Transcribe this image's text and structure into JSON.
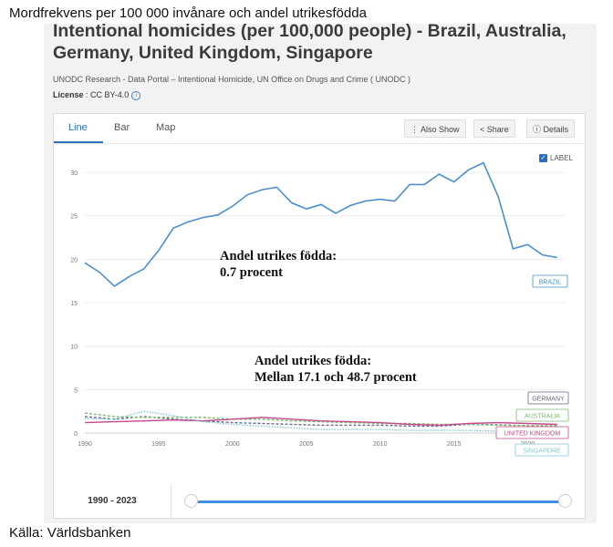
{
  "captions": {
    "top": "Mordfrekvens per 100 000 invånare och andel utrikesfödda",
    "bottom": "Källa: Världsbanken"
  },
  "header": {
    "title": "Intentional homicides (per 100,000 people) - Brazil, Australia, Germany, United Kingdom, Singapore",
    "source": "UNODC Research - Data Portal – Intentional Homicide, UN Office on Drugs and Crime ( UNODC )",
    "license_key": "License",
    "license_value": " : CC BY-4.0"
  },
  "tabs": [
    {
      "label": "Line"
    },
    {
      "label": "Bar"
    },
    {
      "label": "Map"
    }
  ],
  "toolbar": {
    "also_show": "Also Show",
    "share": "Share",
    "details": "Details"
  },
  "label_toggle": "LABEL",
  "annotations": {
    "a1_line1": "Andel utrikes födda:",
    "a1_line2": "0.7 procent",
    "a2_line1": "Andel utrikes födda:",
    "a2_line2": "Mellan 17.1 och 48.7 procent"
  },
  "range": {
    "label": "1990 - 2023"
  },
  "colors": {
    "BRAZIL": "#4a8fc9",
    "GERMANY": "#6a6a88",
    "AUSTRALIA": "#7fb86a",
    "UNITED KINGDOM": "#c2498a",
    "SINGAPORE": "#7ec8d0"
  },
  "chart_data": {
    "type": "line",
    "ylim": [
      0,
      32
    ],
    "y_ticks": [
      0,
      5,
      10,
      15,
      20,
      25,
      30
    ],
    "x_ticks": [
      1990,
      1995,
      2000,
      2005,
      2010,
      2015,
      2020
    ],
    "x_tick_labels": [
      "1990",
      "1995",
      "2000",
      "2005",
      "2010",
      "2015",
      "2020"
    ],
    "y_tick_labels": [
      "0",
      "5",
      "10",
      "15",
      "20",
      "25",
      "30"
    ],
    "series": [
      {
        "name": "BRAZIL",
        "years": [
          1990,
          1991,
          1992,
          1993,
          1994,
          1995,
          1996,
          1997,
          1998,
          1999,
          2000,
          2001,
          2002,
          2003,
          2004,
          2005,
          2006,
          2007,
          2008,
          2009,
          2010,
          2011,
          2012,
          2013,
          2014,
          2015,
          2016,
          2017,
          2018,
          2019,
          2020,
          2021,
          2022
        ],
        "values": [
          19.6,
          18.5,
          16.9,
          18.0,
          18.9,
          21.0,
          23.6,
          24.3,
          24.8,
          25.1,
          26.1,
          27.4,
          28.0,
          28.3,
          26.5,
          25.8,
          26.3,
          25.3,
          26.2,
          26.7,
          26.9,
          26.7,
          28.6,
          28.6,
          29.8,
          28.9,
          30.3,
          31.1,
          27.2,
          21.2,
          21.7,
          20.5,
          20.2
        ]
      },
      {
        "name": "GERMANY",
        "years": [
          1990,
          1992,
          1994,
          1996,
          1998,
          2000,
          2002,
          2004,
          2006,
          2008,
          2010,
          2012,
          2014,
          2016,
          2018,
          2020,
          2022
        ],
        "values": [
          1.9,
          1.6,
          1.9,
          1.6,
          1.4,
          1.2,
          1.1,
          1.0,
          0.9,
          0.9,
          0.9,
          0.8,
          0.8,
          1.0,
          0.95,
          0.85,
          0.8
        ]
      },
      {
        "name": "AUSTRALIA",
        "years": [
          1990,
          1992,
          1994,
          1996,
          1998,
          2000,
          2002,
          2004,
          2006,
          2008,
          2010,
          2012,
          2014,
          2016,
          2018,
          2020,
          2022
        ],
        "values": [
          2.3,
          1.9,
          1.8,
          1.8,
          1.8,
          1.6,
          1.6,
          1.4,
          1.3,
          1.2,
          1.1,
          1.1,
          1.0,
          1.0,
          0.9,
          0.85,
          0.85
        ]
      },
      {
        "name": "UNITED KINGDOM",
        "years": [
          1990,
          1992,
          1994,
          1996,
          1998,
          2000,
          2002,
          2004,
          2006,
          2008,
          2010,
          2012,
          2014,
          2016,
          2018,
          2020,
          2022
        ],
        "values": [
          1.2,
          1.3,
          1.4,
          1.5,
          1.4,
          1.6,
          1.8,
          1.6,
          1.4,
          1.3,
          1.2,
          1.0,
          0.9,
          1.1,
          1.2,
          1.1,
          1.0
        ]
      },
      {
        "name": "SINGAPORE",
        "years": [
          1990,
          1992,
          1994,
          1996,
          1998,
          2000,
          2002,
          2004,
          2006,
          2008,
          2010,
          2012,
          2014,
          2016,
          2018,
          2020,
          2022
        ],
        "values": [
          1.7,
          1.6,
          2.5,
          2.0,
          1.3,
          1.0,
          0.8,
          0.6,
          0.4,
          0.4,
          0.4,
          0.3,
          0.3,
          0.3,
          0.2,
          0.2,
          0.2
        ]
      }
    ]
  }
}
